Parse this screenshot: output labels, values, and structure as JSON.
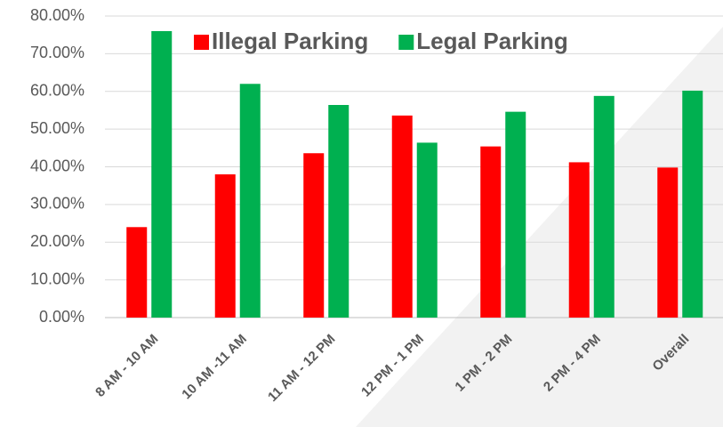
{
  "chart_data": {
    "type": "bar",
    "categories": [
      "8 AM - 10 AM",
      "10 AM -11 AM",
      "11 AM - 12 PM",
      "12 PM - 1 PM",
      "1 PM - 2 PM",
      "2 PM - 4 PM",
      "Overall"
    ],
    "series": [
      {
        "name": "Illegal Parking",
        "color": "#ff0000",
        "values": [
          24,
          38,
          43.6,
          53.6,
          45.4,
          41.2,
          39.8
        ]
      },
      {
        "name": "Legal Parking",
        "color": "#00b050",
        "values": [
          76,
          62,
          56.4,
          46.4,
          54.6,
          58.8,
          60.2
        ]
      }
    ],
    "ylim": [
      0,
      80
    ],
    "yticks": [
      {
        "value": 0,
        "label": "0.00%"
      },
      {
        "value": 10,
        "label": "10.00%"
      },
      {
        "value": 20,
        "label": "20.00%"
      },
      {
        "value": 30,
        "label": "30.00%"
      },
      {
        "value": 40,
        "label": "40.00%"
      },
      {
        "value": 50,
        "label": "50.00%"
      },
      {
        "value": 60,
        "label": "60.00%"
      },
      {
        "value": 70,
        "label": "70.00%"
      },
      {
        "value": 80,
        "label": "80.00%"
      }
    ],
    "grid": true,
    "legend": "top"
  }
}
